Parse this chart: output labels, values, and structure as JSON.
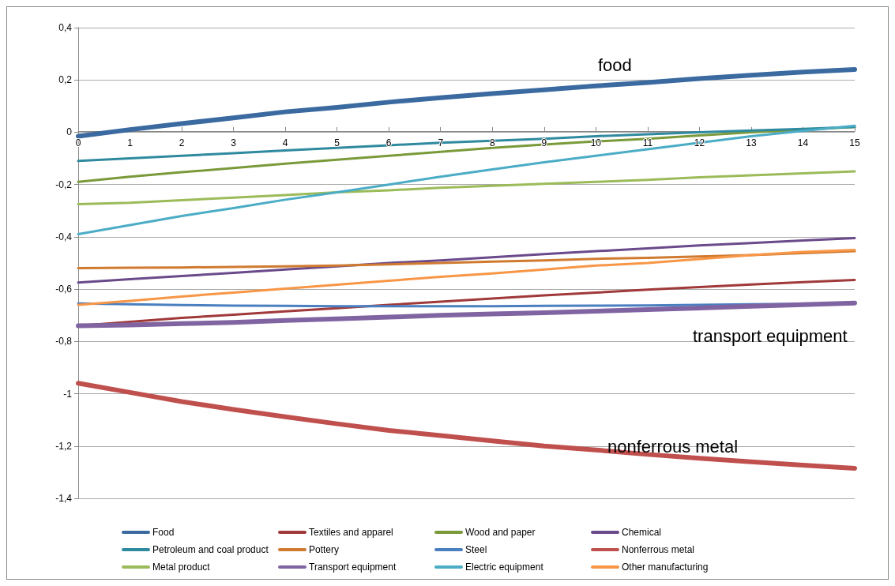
{
  "chart_data": {
    "type": "line",
    "x": [
      0,
      1,
      2,
      3,
      4,
      5,
      6,
      7,
      8,
      9,
      10,
      11,
      12,
      13,
      14,
      15
    ],
    "xlim": [
      0,
      15
    ],
    "xticks": [
      0,
      1,
      2,
      3,
      4,
      5,
      6,
      7,
      8,
      9,
      10,
      11,
      12,
      13,
      14,
      15
    ],
    "ylim": [
      -1.4,
      0.4
    ],
    "yticks": [
      {
        "value": -1.4,
        "label": "-1,4"
      },
      {
        "value": -1.2,
        "label": "-1,2"
      },
      {
        "value": -1,
        "label": "-1"
      },
      {
        "value": -0.8,
        "label": "-0,8"
      },
      {
        "value": -0.6,
        "label": "-0,6"
      },
      {
        "value": -0.4,
        "label": "-0,4"
      },
      {
        "value": -0.2,
        "label": "-0,2"
      },
      {
        "value": 0,
        "label": "0"
      },
      {
        "value": 0.2,
        "label": "0,2"
      },
      {
        "value": 0.4,
        "label": "0,4"
      }
    ],
    "grid": "y",
    "legend": "bottom",
    "marker": "none",
    "line_style": "solid",
    "series": [
      {
        "name": "Food",
        "color": "#3a6aa0",
        "values": [
          -0.015,
          0.01,
          0.033,
          0.055,
          0.078,
          0.095,
          0.115,
          0.132,
          0.148,
          0.162,
          0.177,
          0.19,
          0.205,
          0.218,
          0.23,
          0.24
        ]
      },
      {
        "name": "Textiles and apparel",
        "color": "#a0393a",
        "values": [
          -0.74,
          -0.725,
          -0.71,
          -0.698,
          -0.685,
          -0.673,
          -0.66,
          -0.648,
          -0.636,
          -0.624,
          -0.613,
          -0.602,
          -0.592,
          -0.582,
          -0.573,
          -0.565
        ]
      },
      {
        "name": "Wood and paper",
        "color": "#7a9a3a",
        "values": [
          -0.19,
          -0.17,
          -0.153,
          -0.137,
          -0.12,
          -0.105,
          -0.09,
          -0.075,
          -0.06,
          -0.047,
          -0.035,
          -0.025,
          -0.012,
          0,
          0.01,
          0.02
        ]
      },
      {
        "name": "Chemical",
        "color": "#6a4a8a",
        "values": [
          -0.575,
          -0.562,
          -0.55,
          -0.538,
          -0.525,
          -0.513,
          -0.5,
          -0.49,
          -0.478,
          -0.466,
          -0.455,
          -0.444,
          -0.433,
          -0.424,
          -0.414,
          -0.405
        ]
      },
      {
        "name": "Petroleum and coal product",
        "color": "#2f8a9f",
        "values": [
          -0.11,
          -0.1,
          -0.09,
          -0.08,
          -0.07,
          -0.06,
          -0.05,
          -0.04,
          -0.033,
          -0.025,
          -0.015,
          -0.008,
          0,
          0.007,
          0.013,
          0.02
        ]
      },
      {
        "name": "Pottery",
        "color": "#d07a30",
        "values": [
          -0.52,
          -0.518,
          -0.517,
          -0.515,
          -0.513,
          -0.51,
          -0.505,
          -0.5,
          -0.495,
          -0.49,
          -0.484,
          -0.48,
          -0.475,
          -0.47,
          -0.462,
          -0.455
        ]
      },
      {
        "name": "Steel",
        "color": "#4a7fc0",
        "values": [
          -0.655,
          -0.658,
          -0.661,
          -0.663,
          -0.664,
          -0.665,
          -0.665,
          -0.665,
          -0.665,
          -0.664,
          -0.663,
          -0.662,
          -0.66,
          -0.658,
          -0.656,
          -0.655
        ]
      },
      {
        "name": "Nonferrous metal",
        "color": "#c0504d",
        "values": [
          -0.96,
          -0.995,
          -1.03,
          -1.06,
          -1.088,
          -1.115,
          -1.14,
          -1.16,
          -1.18,
          -1.2,
          -1.215,
          -1.232,
          -1.247,
          -1.26,
          -1.273,
          -1.285
        ]
      },
      {
        "name": "Metal product",
        "color": "#9bbb59",
        "values": [
          -0.275,
          -0.27,
          -0.26,
          -0.25,
          -0.24,
          -0.23,
          -0.222,
          -0.212,
          -0.205,
          -0.197,
          -0.19,
          -0.182,
          -0.172,
          -0.165,
          -0.157,
          -0.15
        ]
      },
      {
        "name": "Transport equipment",
        "color": "#8064a2",
        "values": [
          -0.74,
          -0.737,
          -0.732,
          -0.727,
          -0.72,
          -0.714,
          -0.707,
          -0.7,
          -0.695,
          -0.69,
          -0.684,
          -0.678,
          -0.672,
          -0.665,
          -0.659,
          -0.653
        ]
      },
      {
        "name": "Electric equipment",
        "color": "#4bacc6",
        "values": [
          -0.39,
          -0.355,
          -0.32,
          -0.29,
          -0.258,
          -0.23,
          -0.2,
          -0.17,
          -0.142,
          -0.115,
          -0.09,
          -0.065,
          -0.04,
          -0.015,
          0.005,
          0.025
        ]
      },
      {
        "name": "Other manufacturing",
        "color": "#f79646",
        "values": [
          -0.66,
          -0.645,
          -0.628,
          -0.613,
          -0.598,
          -0.583,
          -0.568,
          -0.553,
          -0.54,
          -0.525,
          -0.51,
          -0.5,
          -0.485,
          -0.47,
          -0.458,
          -0.45
        ]
      }
    ],
    "annotations": [
      "food",
      "transport equipment",
      "nonferrous metal"
    ]
  }
}
